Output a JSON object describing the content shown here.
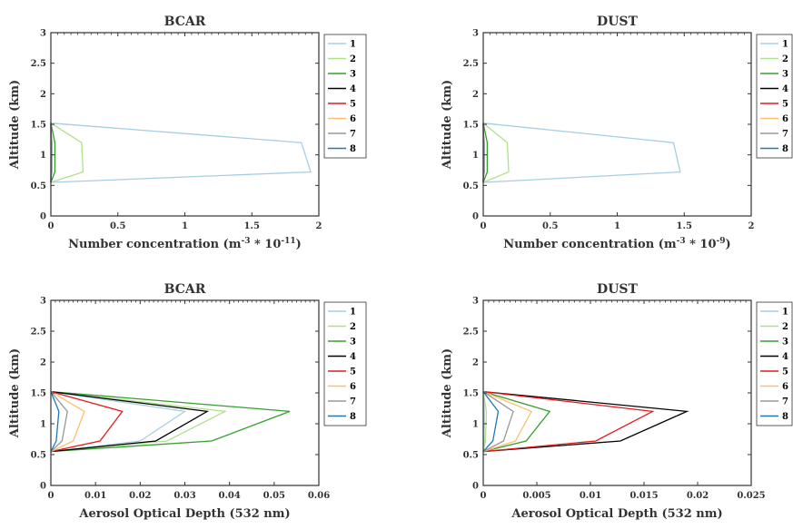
{
  "chart_data": [
    {
      "type": "line",
      "title": "BCAR",
      "xlabel_prefix": "Number concentration (m",
      "xlabel_sup": "-3",
      "xlabel_mid": " * 10",
      "xlabel_sup2": "-11",
      "xlabel_suffix": ")",
      "ylabel": "Altitude (km)",
      "xlim": [
        0,
        2
      ],
      "ylim": [
        0,
        3
      ],
      "xticks": [
        "0",
        "0.5",
        "1",
        "1.5",
        "2"
      ],
      "yticks": [
        "0",
        "0.5",
        "1",
        "1.5",
        "2",
        "2.5",
        "3"
      ],
      "legend": "right",
      "series": [
        {
          "name": "1",
          "color": "#a6cee3",
          "x": [
            0,
            1.94,
            1.87,
            0
          ],
          "y": [
            0.55,
            0.72,
            1.2,
            1.52
          ]
        },
        {
          "name": "2",
          "color": "#b2df8a",
          "x": [
            0,
            0.24,
            0.23,
            0
          ],
          "y": [
            0.55,
            0.72,
            1.2,
            1.52
          ]
        },
        {
          "name": "3",
          "color": "#33a02c",
          "x": [
            0,
            0.03,
            0.03,
            0
          ],
          "y": [
            0.55,
            0.72,
            1.2,
            1.52
          ]
        },
        {
          "name": "4",
          "color": "#000000",
          "x": [
            0,
            0.005,
            0.005,
            0
          ],
          "y": [
            0.55,
            0.72,
            1.2,
            1.52
          ]
        },
        {
          "name": "5",
          "color": "#e31a1c",
          "x": [
            0,
            0.003,
            0.003,
            0
          ],
          "y": [
            0.55,
            0.72,
            1.2,
            1.52
          ]
        },
        {
          "name": "6",
          "color": "#fdbf6f",
          "x": [
            0,
            0.002,
            0.002,
            0
          ],
          "y": [
            0.55,
            0.72,
            1.2,
            1.52
          ]
        },
        {
          "name": "7",
          "color": "#999999",
          "x": [
            0,
            0.001,
            0.001,
            0
          ],
          "y": [
            0.55,
            0.72,
            1.2,
            1.52
          ]
        },
        {
          "name": "8",
          "color": "#1f78b4",
          "x": [
            0,
            0.0005,
            0.0005,
            0
          ],
          "y": [
            0.55,
            0.72,
            1.2,
            1.52
          ]
        }
      ]
    },
    {
      "type": "line",
      "title": "DUST",
      "xlabel_prefix": "Number concentration (m",
      "xlabel_sup": "-3",
      "xlabel_mid": " * 10",
      "xlabel_sup2": "-9",
      "xlabel_suffix": ")",
      "ylabel": "Altitude (km)",
      "xlim": [
        0,
        2
      ],
      "ylim": [
        0,
        3
      ],
      "xticks": [
        "0",
        "0.5",
        "1",
        "1.5",
        "2"
      ],
      "yticks": [
        "0",
        "0.5",
        "1",
        "1.5",
        "2",
        "2.5",
        "3"
      ],
      "legend": "right",
      "series": [
        {
          "name": "1",
          "color": "#a6cee3",
          "x": [
            0,
            1.47,
            1.42,
            0
          ],
          "y": [
            0.55,
            0.72,
            1.2,
            1.52
          ]
        },
        {
          "name": "2",
          "color": "#b2df8a",
          "x": [
            0,
            0.19,
            0.18,
            0
          ],
          "y": [
            0.55,
            0.72,
            1.2,
            1.52
          ]
        },
        {
          "name": "3",
          "color": "#33a02c",
          "x": [
            0,
            0.03,
            0.03,
            0
          ],
          "y": [
            0.55,
            0.72,
            1.2,
            1.52
          ]
        },
        {
          "name": "4",
          "color": "#000000",
          "x": [
            0,
            0.005,
            0.005,
            0
          ],
          "y": [
            0.55,
            0.72,
            1.2,
            1.52
          ]
        },
        {
          "name": "5",
          "color": "#e31a1c",
          "x": [
            0,
            0.003,
            0.003,
            0
          ],
          "y": [
            0.55,
            0.72,
            1.2,
            1.52
          ]
        },
        {
          "name": "6",
          "color": "#fdbf6f",
          "x": [
            0,
            0.002,
            0.002,
            0
          ],
          "y": [
            0.55,
            0.72,
            1.2,
            1.52
          ]
        },
        {
          "name": "7",
          "color": "#999999",
          "x": [
            0,
            0.001,
            0.001,
            0
          ],
          "y": [
            0.55,
            0.72,
            1.2,
            1.52
          ]
        },
        {
          "name": "8",
          "color": "#1f78b4",
          "x": [
            0,
            0.0005,
            0.0005,
            0
          ],
          "y": [
            0.55,
            0.72,
            1.2,
            1.52
          ]
        }
      ]
    },
    {
      "type": "line",
      "title": "BCAR",
      "xlabel_prefix": "Aerosol Optical Depth (532 nm)",
      "ylabel": "Altitude (km)",
      "xlim": [
        0,
        0.06
      ],
      "ylim": [
        0,
        3
      ],
      "xticks": [
        "0",
        "0.01",
        "0.02",
        "0.03",
        "0.04",
        "0.05",
        "0.06"
      ],
      "yticks": [
        "0",
        "0.5",
        "1",
        "1.5",
        "2",
        "2.5",
        "3"
      ],
      "legend": "right",
      "series": [
        {
          "name": "1",
          "color": "#a6cee3",
          "x": [
            0,
            0.02,
            0.03,
            0
          ],
          "y": [
            0.55,
            0.72,
            1.2,
            1.52
          ]
        },
        {
          "name": "2",
          "color": "#b2df8a",
          "x": [
            0,
            0.026,
            0.039,
            0
          ],
          "y": [
            0.55,
            0.72,
            1.2,
            1.52
          ]
        },
        {
          "name": "3",
          "color": "#33a02c",
          "x": [
            0,
            0.036,
            0.0535,
            0
          ],
          "y": [
            0.55,
            0.72,
            1.2,
            1.52
          ]
        },
        {
          "name": "4",
          "color": "#000000",
          "x": [
            0,
            0.0235,
            0.035,
            0
          ],
          "y": [
            0.55,
            0.72,
            1.2,
            1.52
          ]
        },
        {
          "name": "5",
          "color": "#e31a1c",
          "x": [
            0,
            0.011,
            0.016,
            0
          ],
          "y": [
            0.55,
            0.72,
            1.2,
            1.52
          ]
        },
        {
          "name": "6",
          "color": "#fdbf6f",
          "x": [
            0,
            0.005,
            0.0075,
            0
          ],
          "y": [
            0.55,
            0.72,
            1.2,
            1.52
          ]
        },
        {
          "name": "7",
          "color": "#999999",
          "x": [
            0,
            0.0025,
            0.0037,
            0
          ],
          "y": [
            0.55,
            0.72,
            1.2,
            1.52
          ]
        },
        {
          "name": "8",
          "color": "#1f78b4",
          "x": [
            0,
            0.0012,
            0.0018,
            0
          ],
          "y": [
            0.55,
            0.72,
            1.2,
            1.52
          ]
        }
      ]
    },
    {
      "type": "line",
      "title": "DUST",
      "xlabel_prefix": "Aerosol Optical Depth (532 nm)",
      "ylabel": "Altitude (km)",
      "xlim": [
        0,
        0.025
      ],
      "ylim": [
        0,
        3
      ],
      "xticks": [
        "0",
        "0.005",
        "0.01",
        "0.015",
        "0.02",
        "0.025"
      ],
      "yticks": [
        "0",
        "0.5",
        "1",
        "1.5",
        "2",
        "2.5",
        "3"
      ],
      "legend": "right",
      "series": [
        {
          "name": "1",
          "color": "#a6cee3",
          "x": [
            0,
            8e-05,
            0.0001,
            0
          ],
          "y": [
            0.55,
            0.72,
            1.2,
            1.52
          ]
        },
        {
          "name": "2",
          "color": "#b2df8a",
          "x": [
            0,
            0.0002,
            0.0003,
            0
          ],
          "y": [
            0.55,
            0.72,
            1.2,
            1.52
          ]
        },
        {
          "name": "3",
          "color": "#33a02c",
          "x": [
            0,
            0.004,
            0.0062,
            0
          ],
          "y": [
            0.55,
            0.72,
            1.2,
            1.52
          ]
        },
        {
          "name": "4",
          "color": "#000000",
          "x": [
            0,
            0.0128,
            0.019,
            0
          ],
          "y": [
            0.55,
            0.72,
            1.2,
            1.52
          ]
        },
        {
          "name": "5",
          "color": "#e31a1c",
          "x": [
            0,
            0.0105,
            0.0158,
            0
          ],
          "y": [
            0.55,
            0.72,
            1.2,
            1.52
          ]
        },
        {
          "name": "6",
          "color": "#fdbf6f",
          "x": [
            0,
            0.003,
            0.0045,
            0
          ],
          "y": [
            0.55,
            0.72,
            1.2,
            1.52
          ]
        },
        {
          "name": "7",
          "color": "#999999",
          "x": [
            0,
            0.0019,
            0.0028,
            0
          ],
          "y": [
            0.55,
            0.72,
            1.2,
            1.52
          ]
        },
        {
          "name": "8",
          "color": "#1f78b4",
          "x": [
            0,
            0.0009,
            0.0014,
            0
          ],
          "y": [
            0.55,
            0.72,
            1.2,
            1.52
          ]
        }
      ]
    }
  ]
}
